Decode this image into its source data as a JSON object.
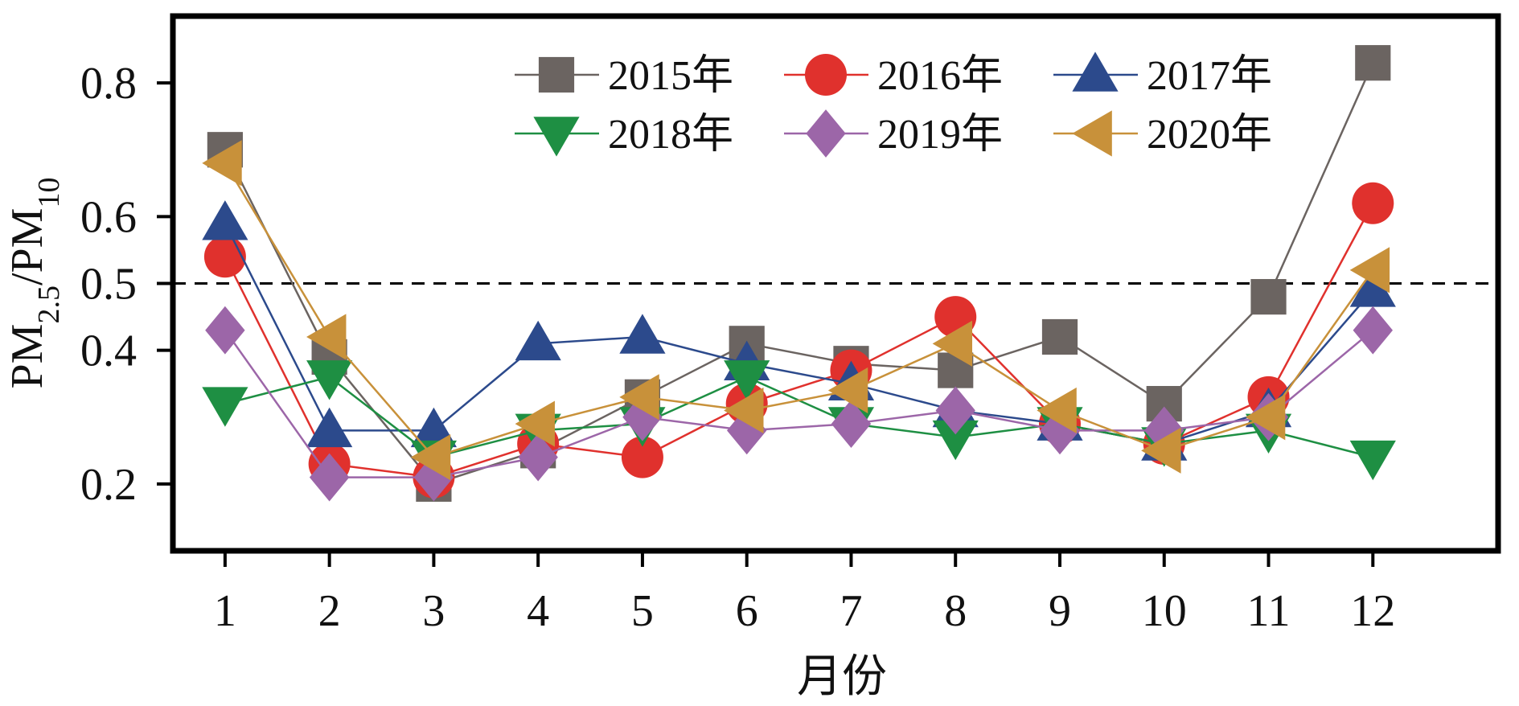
{
  "chart_data": {
    "type": "line",
    "xlabel": "月份",
    "ylabel": {
      "main1": "PM",
      "sub1": "2.5",
      "slash": "/PM",
      "sub2": "10"
    },
    "x": [
      1,
      2,
      3,
      4,
      5,
      6,
      7,
      8,
      9,
      10,
      11,
      12
    ],
    "xticks": [
      "1",
      "2",
      "3",
      "4",
      "5",
      "6",
      "7",
      "8",
      "9",
      "10",
      "11",
      "12"
    ],
    "yticks": [
      "0.2",
      "0.4",
      "0.5",
      "0.6",
      "0.8"
    ],
    "ytick_values": [
      0.2,
      0.4,
      0.5,
      0.6,
      0.8
    ],
    "ylim": [
      0.1,
      0.9
    ],
    "xlim": [
      0.5,
      13.2
    ],
    "reference_line": {
      "y": 0.5,
      "style": "dashed"
    },
    "grid": false,
    "legend": {
      "position": "top-center",
      "columns": 3
    },
    "series": [
      {
        "name": "2015年",
        "marker": "square",
        "color": "#6b6461",
        "values": [
          0.7,
          0.39,
          0.2,
          0.25,
          0.33,
          0.41,
          0.38,
          0.37,
          0.42,
          0.32,
          0.48,
          0.83
        ]
      },
      {
        "name": "2016年",
        "marker": "circle",
        "color": "#e0312d",
        "values": [
          0.54,
          0.23,
          0.21,
          0.26,
          0.24,
          0.32,
          0.37,
          0.45,
          0.29,
          0.26,
          0.33,
          0.62
        ]
      },
      {
        "name": "2017年",
        "marker": "triangle-up",
        "color": "#2c4a8c",
        "values": [
          0.59,
          0.28,
          0.28,
          0.41,
          0.42,
          0.38,
          0.35,
          0.31,
          0.29,
          0.26,
          0.31,
          0.49
        ]
      },
      {
        "name": "2018年",
        "marker": "triangle-down",
        "color": "#1e8f43",
        "values": [
          0.32,
          0.36,
          0.24,
          0.28,
          0.29,
          0.36,
          0.29,
          0.27,
          0.29,
          0.26,
          0.28,
          0.24
        ]
      },
      {
        "name": "2019年",
        "marker": "diamond",
        "color": "#9c66a8",
        "values": [
          0.43,
          0.21,
          0.21,
          0.24,
          0.3,
          0.28,
          0.29,
          0.31,
          0.28,
          0.28,
          0.3,
          0.43
        ]
      },
      {
        "name": "2020年",
        "marker": "triangle-left",
        "color": "#c8913a",
        "values": [
          0.68,
          0.42,
          0.24,
          0.29,
          0.33,
          0.31,
          0.34,
          0.41,
          0.31,
          0.25,
          0.3,
          0.52
        ]
      }
    ]
  }
}
